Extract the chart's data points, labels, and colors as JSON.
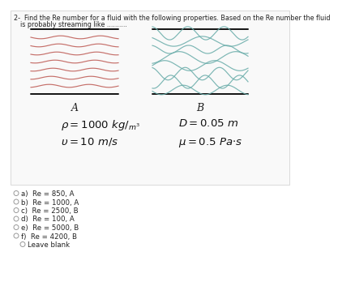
{
  "title_line1": "2-  Find the Re number for a fluid with the following properties. Based on the Re number the fluid",
  "title_line2": "is probably streaming like ..........",
  "label_A": "A",
  "label_B": "B",
  "options": [
    [
      "a)",
      "Re = 850, A",
      false
    ],
    [
      "b)",
      "Re = 1000, A",
      false
    ],
    [
      "c)",
      "Re = 2500, B",
      false
    ],
    [
      "d)",
      "Re = 100, A",
      false
    ],
    [
      "e)",
      "Re = 5000, B",
      false
    ],
    [
      "f)",
      "Re = 4200, B",
      false
    ],
    [
      "",
      "Leave blank",
      false
    ]
  ],
  "bg_color": "#ffffff",
  "diagram_bg": "#f8f8f8",
  "laminar_color": "#c0605a",
  "turbulent_color": "#6aadaa",
  "text_color": "#222222",
  "diagram_border_color": "#aaaaaa",
  "title_fontsize": 5.8,
  "label_fontsize": 9,
  "eq_fontsize": 8,
  "opt_fontsize": 6.2
}
